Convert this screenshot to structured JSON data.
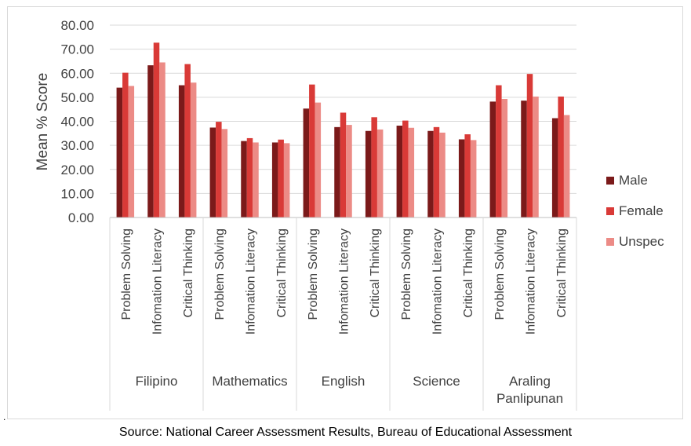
{
  "source_note": "Source: National Career Assessment Results, Bureau of Educational Assessment",
  "stray_mark": ".",
  "colors": {
    "Male": "#7b1a1a",
    "Female": "#d93a37",
    "Unspec": "#ec8b86"
  },
  "chart_data": {
    "type": "bar",
    "title": "",
    "xlabel": "",
    "ylabel": "Mean % Score",
    "ylim": [
      0,
      80
    ],
    "yticks": [
      "0.00",
      "10.00",
      "20.00",
      "30.00",
      "40.00",
      "50.00",
      "60.00",
      "70.00",
      "80.00"
    ],
    "grid": true,
    "legend_position": "right",
    "groups": [
      {
        "name": "Filipino",
        "name_lines": [
          "Filipino"
        ],
        "categories": [
          "Problem Solving",
          "Infomation Literacy",
          "Critical Thinking"
        ]
      },
      {
        "name": "Mathematics",
        "name_lines": [
          "Mathematics"
        ],
        "categories": [
          "Problem Solving",
          "Infomation Literacy",
          "Critical Thinking"
        ]
      },
      {
        "name": "English",
        "name_lines": [
          "English"
        ],
        "categories": [
          "Problem Solving",
          "Infomation Literacy",
          "Critical Thinking"
        ]
      },
      {
        "name": "Science",
        "name_lines": [
          "Science"
        ],
        "categories": [
          "Problem Solving",
          "Infomation Literacy",
          "Critical Thinking"
        ]
      },
      {
        "name": "Araling Panlipunan",
        "name_lines": [
          "Araling",
          "Panlipunan"
        ],
        "categories": [
          "Problem Solving",
          "Infomation Literacy",
          "Critical Thinking"
        ]
      }
    ],
    "series": [
      {
        "name": "Male",
        "values": [
          54.0,
          63.3,
          55.0,
          37.4,
          31.8,
          31.2,
          45.3,
          37.6,
          36.0,
          38.2,
          36.0,
          32.5,
          48.2,
          48.6,
          41.3
        ]
      },
      {
        "name": "Female",
        "values": [
          60.2,
          72.7,
          63.8,
          39.8,
          33.0,
          32.4,
          55.3,
          43.6,
          41.7,
          40.3,
          37.6,
          34.6,
          55.0,
          59.7,
          50.3
        ]
      },
      {
        "name": "Unspec",
        "values": [
          54.7,
          64.5,
          56.1,
          36.8,
          31.2,
          30.9,
          47.8,
          38.5,
          36.6,
          37.3,
          35.3,
          32.2,
          49.3,
          50.3,
          42.6
        ]
      }
    ]
  }
}
